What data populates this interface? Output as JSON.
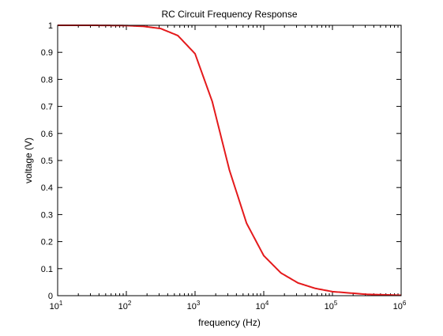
{
  "chart_data": {
    "type": "line",
    "title": "RC Circuit Frequency Response",
    "xlabel": "frequency (Hz)",
    "ylabel": "voltage (V)",
    "xscale": "log",
    "xlim": [
      10,
      1000000
    ],
    "ylim": [
      0,
      1
    ],
    "grid": false,
    "legend": "none",
    "x_ticks": [
      {
        "value": 10,
        "base": "10",
        "exp": "1"
      },
      {
        "value": 100,
        "base": "10",
        "exp": "2"
      },
      {
        "value": 1000,
        "base": "10",
        "exp": "3"
      },
      {
        "value": 10000,
        "base": "10",
        "exp": "4"
      },
      {
        "value": 100000,
        "base": "10",
        "exp": "5"
      },
      {
        "value": 1000000,
        "base": "10",
        "exp": "6"
      }
    ],
    "y_ticks": [
      "0",
      "0.1",
      "0.2",
      "0.3",
      "0.4",
      "0.5",
      "0.6",
      "0.7",
      "0.8",
      "0.9",
      "1"
    ],
    "series": [
      {
        "color": "#e41a1c",
        "x": [
          10,
          31.6,
          100,
          178,
          316,
          562,
          1000,
          1780,
          3160,
          5620,
          10000,
          17800,
          31600,
          56200,
          100000,
          316000,
          1000000
        ],
        "y": [
          1.0,
          1.0,
          0.999,
          0.996,
          0.988,
          0.962,
          0.895,
          0.718,
          0.465,
          0.268,
          0.148,
          0.084,
          0.047,
          0.027,
          0.015,
          0.005,
          0.0015
        ]
      }
    ]
  }
}
